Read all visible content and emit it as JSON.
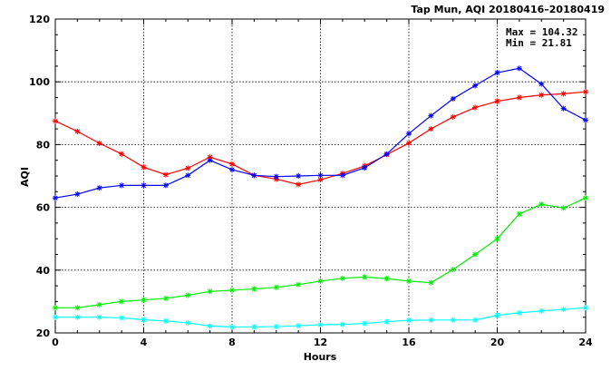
{
  "chart_data": {
    "type": "line",
    "title": "Tap Mun, AQI 20180416–20180419",
    "xlabel": "Hours",
    "ylabel": "AQI",
    "xlim": [
      0,
      24
    ],
    "ylim": [
      20,
      120
    ],
    "xticks": [
      0,
      4,
      8,
      12,
      16,
      20,
      24
    ],
    "yticks": [
      20,
      40,
      60,
      80,
      100,
      120
    ],
    "grid": true,
    "stats": {
      "max_label": "Max = 104.32",
      "min_label": "Min =  21.81"
    },
    "x": [
      0,
      1,
      2,
      3,
      4,
      5,
      6,
      7,
      8,
      9,
      10,
      11,
      12,
      13,
      14,
      15,
      16,
      17,
      18,
      19,
      20,
      21,
      22,
      23,
      24
    ],
    "series": [
      {
        "color": "#ff0000",
        "values": [
          87.5,
          84.2,
          80.4,
          77.0,
          72.8,
          70.4,
          72.5,
          76.0,
          73.8,
          70.2,
          69.0,
          67.3,
          68.8,
          70.8,
          73.2,
          76.8,
          80.5,
          85.0,
          88.8,
          91.8,
          93.8,
          95.0,
          95.8,
          96.2,
          96.8
        ]
      },
      {
        "color": "#0000ff",
        "values": [
          63.0,
          64.2,
          66.2,
          67.0,
          67.0,
          67.0,
          70.2,
          75.0,
          72.0,
          70.2,
          69.8,
          70.0,
          70.2,
          70.2,
          72.6,
          77.0,
          83.5,
          89.2,
          94.6,
          98.8,
          102.9,
          104.3,
          99.3,
          91.5,
          87.8
        ]
      },
      {
        "color": "#00ee00",
        "values": [
          28.0,
          28.0,
          29.0,
          30.0,
          30.5,
          31.0,
          32.0,
          33.2,
          33.6,
          34.0,
          34.5,
          35.4,
          36.5,
          37.4,
          37.8,
          37.3,
          36.5,
          36.0,
          40.2,
          45.0,
          50.0,
          57.9,
          61.0,
          59.8,
          63.0
        ]
      },
      {
        "color": "#00ffff",
        "values": [
          25.0,
          25.0,
          25.0,
          24.8,
          24.2,
          23.8,
          23.2,
          22.2,
          21.9,
          21.9,
          22.0,
          22.3,
          22.6,
          22.7,
          23.0,
          23.6,
          24.0,
          24.1,
          24.1,
          24.1,
          25.6,
          26.4,
          27.0,
          27.5,
          28.0
        ]
      }
    ]
  }
}
